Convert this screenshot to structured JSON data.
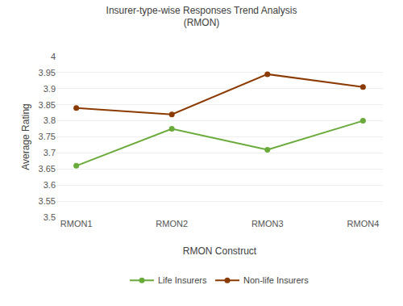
{
  "chart_data": {
    "type": "line",
    "title": "Insurer-type-wise Responses Trend Analysis",
    "subtitle": "(RMON)",
    "x_label": "RMON Construct",
    "y_label": "Average Rating",
    "categories": [
      "RMON1",
      "RMON2",
      "RMON3",
      "RMON4"
    ],
    "series": [
      {
        "name": "Life Insurers",
        "color": "#6aaa3a",
        "values": [
          3.66,
          3.775,
          3.71,
          3.8
        ]
      },
      {
        "name": "Non-life Insurers",
        "color": "#8B3A00",
        "values": [
          3.84,
          3.82,
          3.945,
          3.905
        ]
      }
    ],
    "ylim": [
      3.5,
      4
    ],
    "yticks": [
      3.5,
      3.55,
      3.6,
      3.65,
      3.7,
      3.75,
      3.8,
      3.85,
      3.9,
      3.95,
      4
    ],
    "grid": true,
    "legend": "bottom",
    "marker": "circle"
  }
}
